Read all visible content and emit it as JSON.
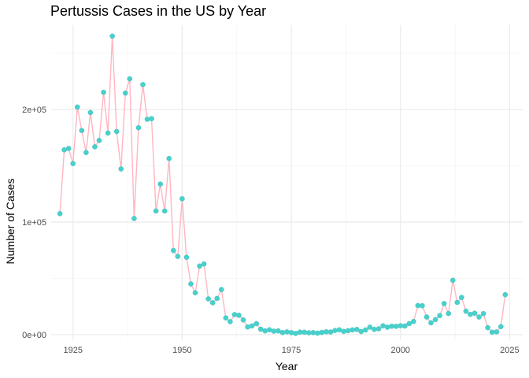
{
  "chart_data": {
    "type": "line",
    "title": "Pertussis Cases in the US by Year",
    "xlabel": "Year",
    "ylabel": "Number of Cases",
    "xlim": [
      1920,
      2028
    ],
    "ylim": [
      -5000,
      275000
    ],
    "x_ticks": [
      1925,
      1950,
      1975,
      2000,
      2025
    ],
    "y_ticks": [
      0,
      100000,
      200000
    ],
    "y_tick_labels": [
      "0e+00",
      "1e+05",
      "2e+05"
    ],
    "grid": true,
    "line_color": "#FFB6C1",
    "point_color": "#48D1CC",
    "series": [
      {
        "x": [
          1922,
          1923,
          1924,
          1925,
          1926,
          1927,
          1928,
          1929,
          1930,
          1931,
          1932,
          1933,
          1934,
          1935,
          1936,
          1937,
          1938,
          1939,
          1940,
          1941,
          1942,
          1943,
          1944,
          1945,
          1946,
          1947,
          1948,
          1949,
          1950,
          1951,
          1952,
          1953,
          1954,
          1955,
          1956,
          1957,
          1958,
          1959,
          1960,
          1961,
          1962,
          1963,
          1964,
          1965,
          1966,
          1967,
          1968,
          1969,
          1970,
          1971,
          1972,
          1973,
          1974,
          1975,
          1976,
          1977,
          1978,
          1979,
          1980,
          1981,
          1982,
          1983,
          1984,
          1985,
          1986,
          1987,
          1988,
          1989,
          1990,
          1991,
          1992,
          1993,
          1994,
          1995,
          1996,
          1997,
          1998,
          1999,
          2000,
          2001,
          2002,
          2003,
          2004,
          2005,
          2006,
          2007,
          2008,
          2009,
          2010,
          2011,
          2012,
          2013,
          2014,
          2015,
          2016,
          2017,
          2018,
          2019,
          2020,
          2021,
          2022,
          2023,
          2024
        ],
        "values": [
          107473,
          164191,
          165418,
          152003,
          202210,
          181411,
          161799,
          197371,
          166914,
          172559,
          215343,
          179135,
          265269,
          180518,
          147237,
          214652,
          227319,
          103188,
          183866,
          222202,
          191383,
          191890,
          109873,
          133792,
          109860,
          156517,
          74715,
          69479,
          120718,
          68687,
          45030,
          37129,
          60886,
          62786,
          31732,
          28295,
          32148,
          40005,
          14809,
          11468,
          17749,
          17135,
          13005,
          6799,
          7717,
          9718,
          4810,
          3285,
          4249,
          3036,
          3287,
          1759,
          2402,
          1738,
          1010,
          2177,
          2063,
          1623,
          1730,
          1248,
          1895,
          2463,
          2276,
          3589,
          4195,
          2823,
          3450,
          4157,
          4570,
          2719,
          4083,
          6586,
          4617,
          5137,
          7796,
          6564,
          7405,
          7288,
          7867,
          7580,
          9771,
          11647,
          25827,
          25616,
          15632,
          10454,
          13278,
          16858,
          27550,
          18719,
          48277,
          28639,
          32971,
          20762,
          17972,
          18975,
          15609,
          18617,
          6124,
          2116,
          2388,
          7063,
          35435
        ]
      }
    ]
  }
}
